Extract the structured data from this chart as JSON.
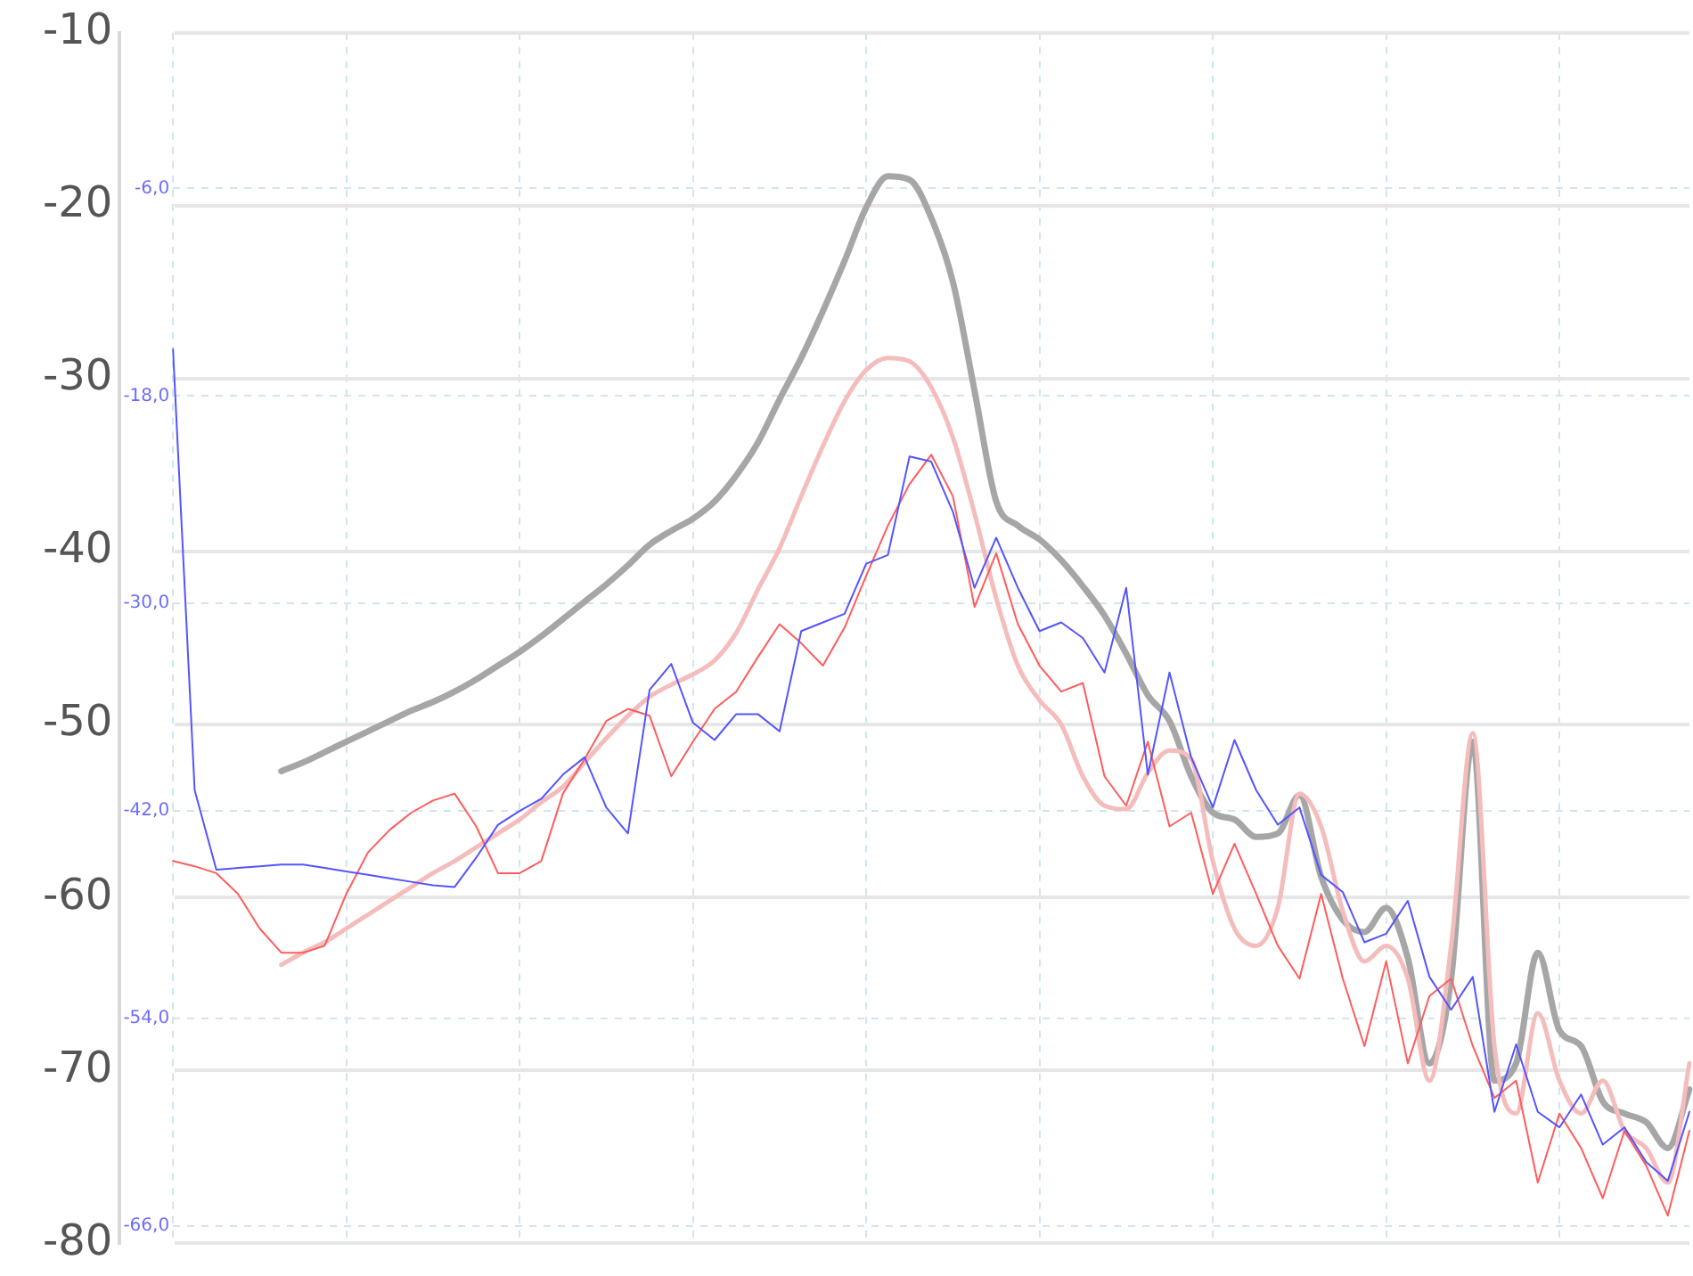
{
  "chart_data": {
    "type": "line",
    "categories": [
      null,
      null,
      null,
      null,
      null,
      null,
      null,
      null,
      null,
      null,
      null,
      null,
      null,
      null,
      null,
      null,
      null,
      null,
      null,
      null,
      null,
      null,
      null,
      null,
      null,
      null,
      null,
      null,
      null,
      null,
      null,
      null,
      null,
      null,
      null,
      null,
      null,
      null,
      null,
      null,
      null,
      null,
      null,
      null,
      null,
      null,
      null,
      null,
      null,
      null,
      null,
      null,
      null,
      null,
      null,
      null,
      null,
      null,
      null,
      null,
      null,
      null,
      null,
      null,
      null,
      null,
      null,
      null,
      null,
      null,
      null
    ],
    "ylim": [
      -80,
      -10
    ],
    "yticks": [
      -80,
      -70,
      -60,
      -50,
      -40,
      -30,
      -20,
      -10
    ],
    "y2lim": [
      -67,
      3
    ],
    "y2ticks": [
      {
        "value": -66,
        "label": "-66,0"
      },
      {
        "value": -54,
        "label": "-54,0"
      },
      {
        "value": -42,
        "label": "-42,0"
      },
      {
        "value": -30,
        "label": "-30,0"
      },
      {
        "value": -18,
        "label": "-18,0"
      },
      {
        "value": -6,
        "label": "-6,0"
      }
    ],
    "grid": true,
    "tick_labels": "y",
    "legend": false,
    "marker": "none",
    "series": [
      {
        "color": "#a6a6a6",
        "values": [
          null,
          null,
          null,
          null,
          null,
          -52.7,
          -52.2,
          -51.6,
          -51.0,
          -50.4,
          -49.8,
          -49.2,
          -48.7,
          -48.1,
          -47.4,
          -46.6,
          -45.8,
          -44.9,
          -43.9,
          -42.9,
          -41.9,
          -40.8,
          -39.6,
          -38.8,
          -38.1,
          -37.1,
          -35.6,
          -33.7,
          -31.2,
          -28.8,
          -26.1,
          -23.2,
          -20.1,
          -18.3,
          -18.5,
          -20.7,
          -24.4,
          -30.7,
          -37.1,
          -38.5,
          -39.3,
          -40.5,
          -42.0,
          -43.7,
          -45.9,
          -48.3,
          -49.8,
          -53.0,
          -55.1,
          -55.5,
          -56.5,
          -56.3,
          -54.1,
          -58.8,
          -61.3,
          -62.0,
          -60.6,
          -63.5,
          -69.6,
          -64.7,
          -51.0,
          -70.6,
          -69.6,
          -63.2,
          -67.7,
          -68.6,
          -71.8,
          -72.5,
          -73.0,
          -74.5,
          -71.1
        ]
      },
      {
        "color": "#f5bcbc",
        "values": [
          null,
          null,
          null,
          null,
          null,
          -63.9,
          -63.2,
          -62.6,
          -61.8,
          -61.0,
          -60.2,
          -59.4,
          -58.6,
          -57.9,
          -57.1,
          -56.3,
          -55.5,
          -54.5,
          -53.6,
          -52.2,
          -50.8,
          -49.5,
          -48.4,
          -47.7,
          -47.1,
          -46.3,
          -44.7,
          -42.2,
          -39.8,
          -36.8,
          -33.9,
          -31.3,
          -29.5,
          -28.8,
          -29.0,
          -30.5,
          -33.4,
          -37.8,
          -42.7,
          -46.6,
          -48.6,
          -50.0,
          -53.0,
          -54.7,
          -54.9,
          -52.8,
          -51.5,
          -52.0,
          -57.9,
          -61.8,
          -62.8,
          -60.6,
          -54.0,
          -55.9,
          -60.8,
          -63.7,
          -62.8,
          -64.7,
          -70.6,
          -62.8,
          -50.5,
          -68.6,
          -72.5,
          -66.7,
          -70.6,
          -72.5,
          -70.6,
          -73.5,
          -74.5,
          -76.5,
          -69.6
        ]
      },
      {
        "color": "#ff5c5c",
        "values": [
          -57.9,
          -58.2,
          -58.6,
          -59.8,
          -61.8,
          -63.2,
          -63.2,
          -62.8,
          -59.8,
          -57.4,
          -56.1,
          -55.1,
          -54.4,
          -54.0,
          -55.9,
          -58.6,
          -58.6,
          -57.9,
          -54.0,
          -52.0,
          -49.8,
          -49.1,
          -49.5,
          -53.0,
          -51.0,
          -49.1,
          -48.1,
          -46.1,
          -44.2,
          -45.3,
          -46.6,
          -44.4,
          -41.4,
          -38.5,
          -36.1,
          -34.4,
          -36.8,
          -43.2,
          -40.1,
          -44.2,
          -46.6,
          -48.1,
          -47.6,
          -53.0,
          -54.7,
          -51.0,
          -55.9,
          -55.1,
          -59.8,
          -56.9,
          -59.8,
          -62.8,
          -64.7,
          -59.8,
          -64.7,
          -68.6,
          -63.7,
          -69.6,
          -65.7,
          -64.7,
          -68.6,
          -71.6,
          -70.6,
          -76.5,
          -72.5,
          -74.5,
          -77.4,
          -73.5,
          -75.5,
          -78.4,
          -73.5
        ]
      },
      {
        "color": "#5454ff",
        "axis": "y2",
        "values": [
          -15.3,
          -40.8,
          -45.4,
          -45.3,
          -45.2,
          -45.1,
          -45.1,
          -45.3,
          -45.5,
          -45.7,
          -45.9,
          -46.1,
          -46.3,
          -46.4,
          -44.7,
          -42.8,
          -42.0,
          -41.3,
          -39.9,
          -38.9,
          -41.8,
          -43.3,
          -35.0,
          -33.5,
          -36.9,
          -37.9,
          -36.4,
          -36.4,
          -37.4,
          -31.6,
          -31.1,
          -30.6,
          -27.7,
          -27.2,
          -21.5,
          -21.8,
          -24.7,
          -29.1,
          -26.2,
          -29.1,
          -31.6,
          -31.1,
          -32.0,
          -34.0,
          -29.1,
          -39.9,
          -34.0,
          -38.9,
          -41.8,
          -37.9,
          -40.8,
          -42.8,
          -41.8,
          -45.7,
          -46.7,
          -49.6,
          -49.1,
          -47.2,
          -51.6,
          -53.5,
          -51.6,
          -59.4,
          -55.5,
          -59.4,
          -60.3,
          -58.4,
          -61.3,
          -60.3,
          -62.3,
          -63.4,
          -59.4
        ]
      }
    ]
  }
}
